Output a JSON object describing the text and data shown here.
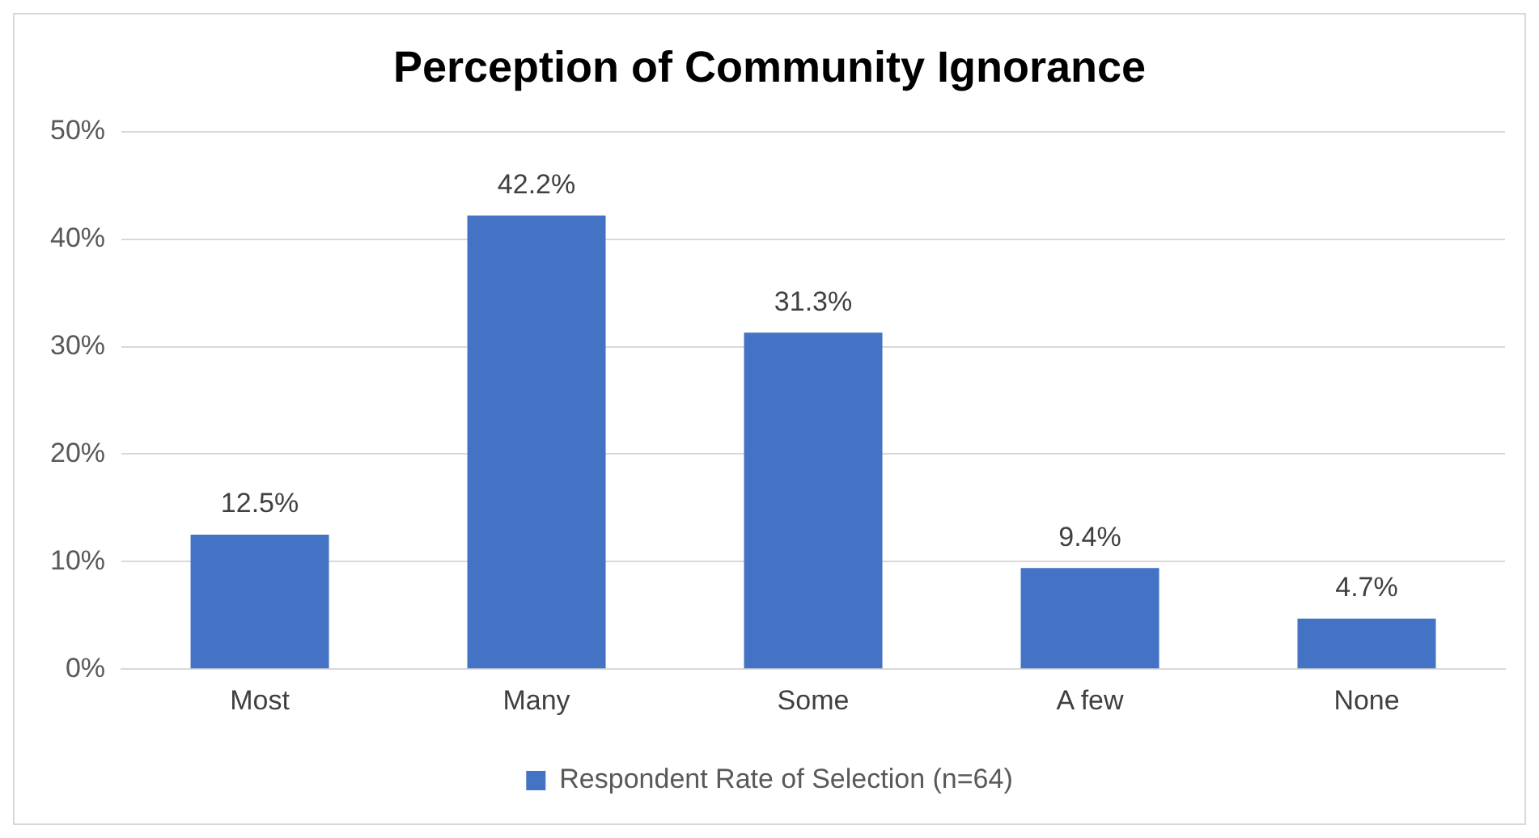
{
  "chart_data": {
    "type": "bar",
    "title": "Perception of Community Ignorance",
    "categories": [
      "Most",
      "Many",
      "Some",
      "A few",
      "None"
    ],
    "series": [
      {
        "name": "Respondent Rate of Selection (n=64)",
        "color": "#4472c4",
        "values": [
          12.5,
          42.2,
          31.3,
          9.4,
          4.7
        ]
      }
    ],
    "value_labels": [
      "12.5%",
      "42.2%",
      "31.3%",
      "9.4%",
      "4.7%"
    ],
    "ylim": [
      0,
      50
    ],
    "yticks": [
      {
        "value": 0,
        "label": "0%"
      },
      {
        "value": 10,
        "label": "10%"
      },
      {
        "value": 20,
        "label": "20%"
      },
      {
        "value": 30,
        "label": "30%"
      },
      {
        "value": 40,
        "label": "40%"
      },
      {
        "value": 50,
        "label": "50%"
      }
    ],
    "grid": "y",
    "legend": "bottom"
  }
}
